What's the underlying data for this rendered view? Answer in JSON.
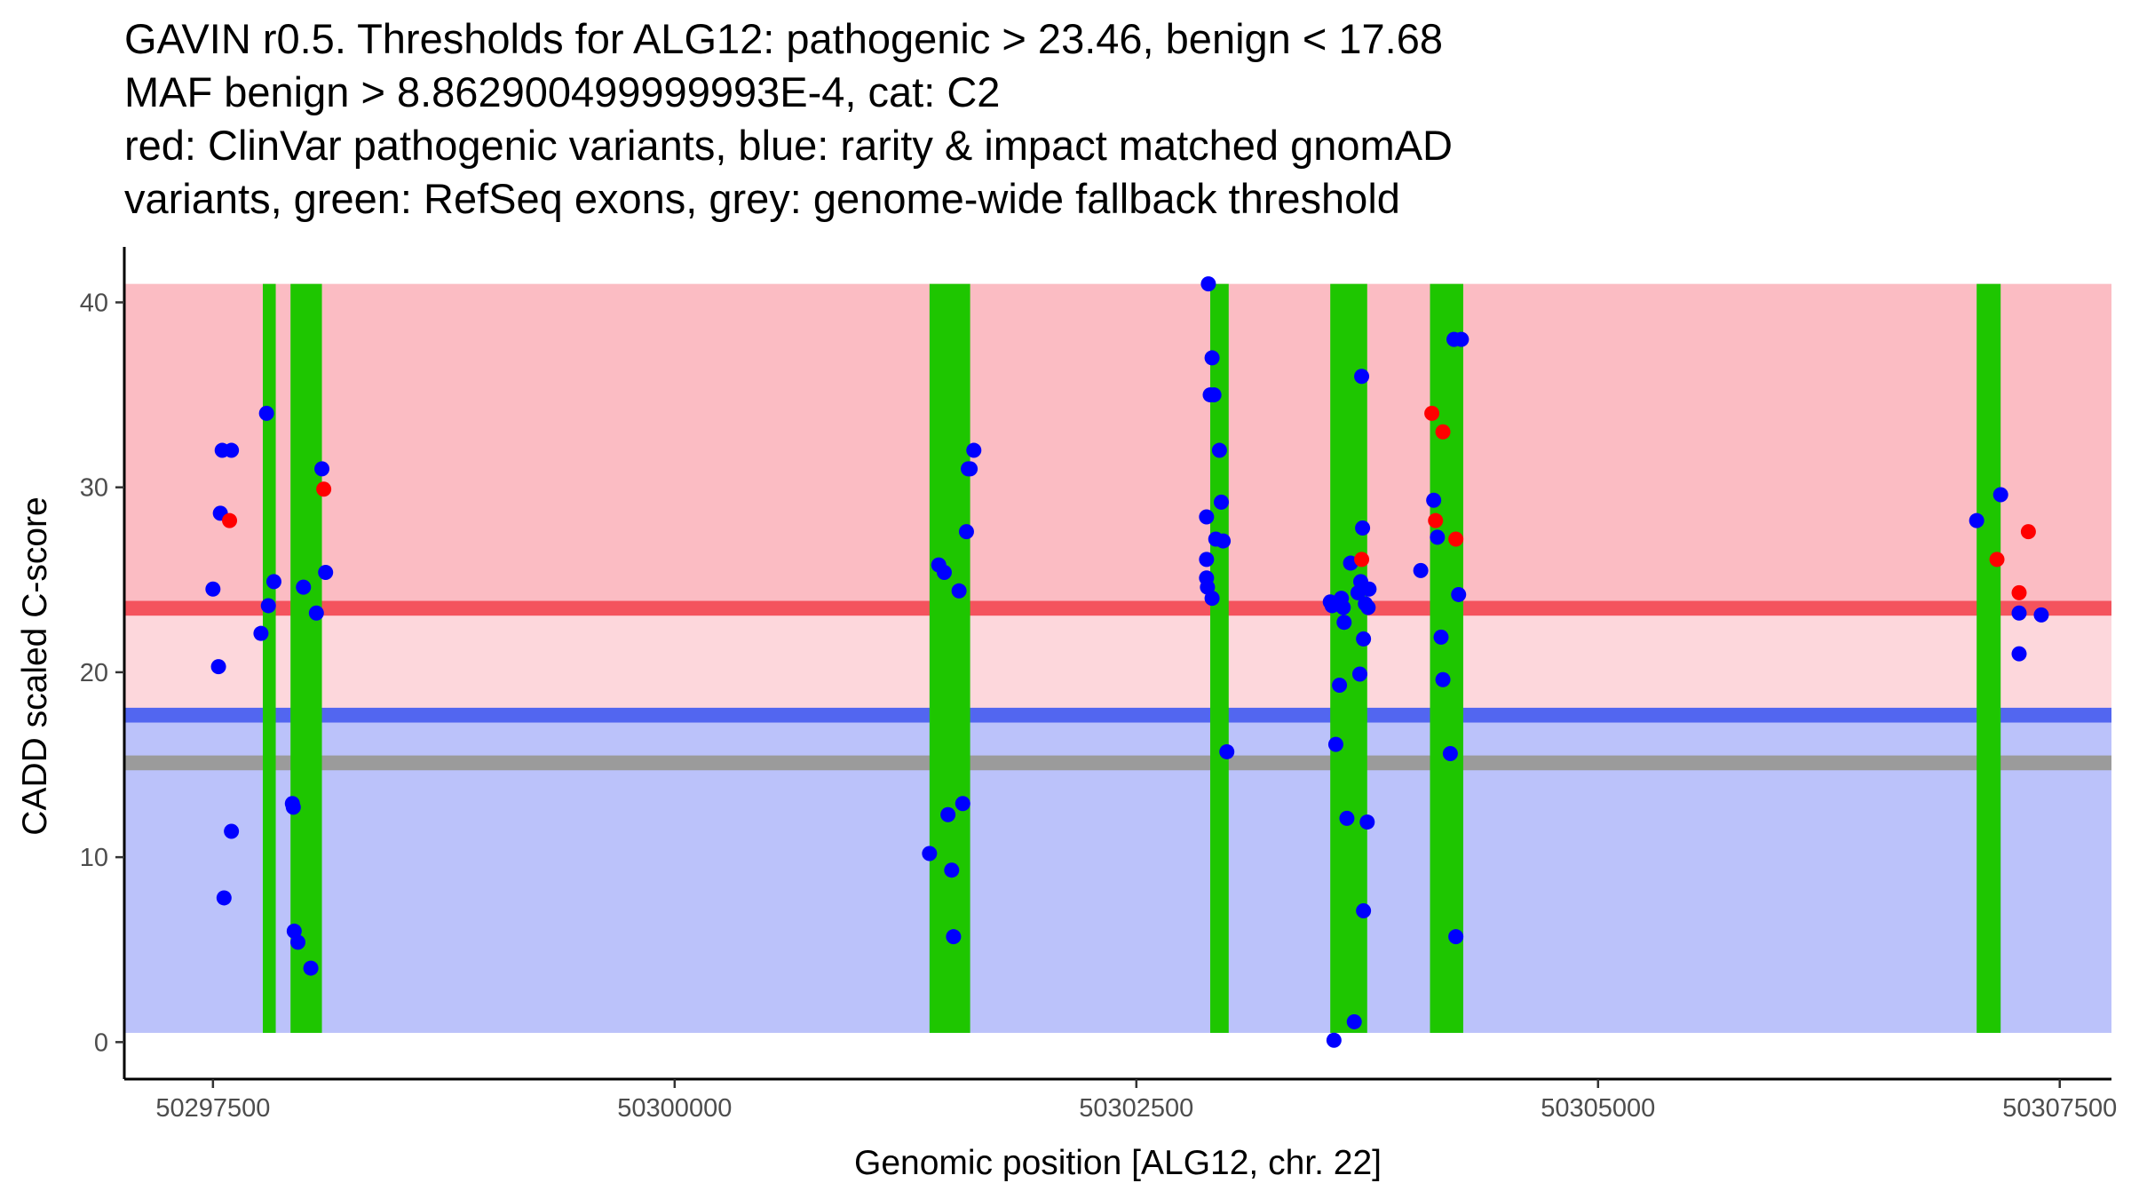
{
  "title_lines": [
    "GAVIN r0.5. Thresholds for ALG12: pathogenic > 23.46, benign < 17.68",
    "MAF benign > 8.862900499999993E-4, cat: C2",
    "red: ClinVar pathogenic variants, blue: rarity & impact matched gnomAD",
    "variants, green: RefSeq exons, grey: genome-wide fallback threshold"
  ],
  "chart_data": {
    "type": "scatter",
    "xlabel": "Genomic position [ALG12, chr. 22]",
    "ylabel": "CADD scaled C-score",
    "xlim": [
      50297020,
      50307780
    ],
    "ylim": [
      -2,
      43
    ],
    "x_ticks": [
      {
        "value": 50297500,
        "label": "50297500"
      },
      {
        "value": 50300000,
        "label": "50300000"
      },
      {
        "value": 50302500,
        "label": "50302500"
      },
      {
        "value": 50305000,
        "label": "50305000"
      },
      {
        "value": 50307500,
        "label": "50307500"
      }
    ],
    "y_ticks": [
      {
        "value": 0,
        "label": "0"
      },
      {
        "value": 10,
        "label": "10"
      },
      {
        "value": 20,
        "label": "20"
      },
      {
        "value": 30,
        "label": "30"
      },
      {
        "value": 40,
        "label": "40"
      }
    ],
    "regions": [
      {
        "name": "pathogenic-region",
        "y0": 23.46,
        "y1": 41,
        "color": "#fbbcc3"
      },
      {
        "name": "grey-zone-region",
        "y0": 17.68,
        "y1": 23.46,
        "color": "#fdd7dc"
      },
      {
        "name": "benign-region",
        "y0": 0.5,
        "y1": 17.68,
        "color": "#bbc2fa"
      }
    ],
    "threshold_lines": [
      {
        "name": "pathogenic-threshold",
        "y": 23.46,
        "color": "#f4535d",
        "width_units": 0.8
      },
      {
        "name": "benign-threshold",
        "y": 17.68,
        "color": "#5266f0",
        "width_units": 0.8
      },
      {
        "name": "fallback-threshold",
        "y": 15.1,
        "color": "#9b9b9b",
        "width_units": 0.8
      }
    ],
    "exons": {
      "color": "#1ec600",
      "y0": 0.5,
      "y1": 41,
      "ranges": [
        [
          50297770,
          50297840
        ],
        [
          50297920,
          50298090
        ],
        [
          50301380,
          50301600
        ],
        [
          50302900,
          50303000
        ],
        [
          50303550,
          50303750
        ],
        [
          50304090,
          50304270
        ],
        [
          50307050,
          50307180
        ]
      ]
    },
    "series": [
      {
        "name": "ClinVar pathogenic",
        "color": "#ff0000",
        "points": [
          {
            "x": 50297590,
            "y": 28.2
          },
          {
            "x": 50298100,
            "y": 29.9
          },
          {
            "x": 50303720,
            "y": 26.1
          },
          {
            "x": 50304100,
            "y": 34.0
          },
          {
            "x": 50304120,
            "y": 28.2
          },
          {
            "x": 50304160,
            "y": 33.0
          },
          {
            "x": 50304230,
            "y": 27.2
          },
          {
            "x": 50307160,
            "y": 26.1
          },
          {
            "x": 50307280,
            "y": 24.3
          },
          {
            "x": 50307330,
            "y": 27.6
          }
        ]
      },
      {
        "name": "gnomAD matched",
        "color": "#0000ff",
        "points": [
          {
            "x": 50297500,
            "y": 24.5
          },
          {
            "x": 50297530,
            "y": 20.3
          },
          {
            "x": 50297540,
            "y": 28.6
          },
          {
            "x": 50297550,
            "y": 32.0
          },
          {
            "x": 50297560,
            "y": 7.8
          },
          {
            "x": 50297600,
            "y": 32.0
          },
          {
            "x": 50297600,
            "y": 11.4
          },
          {
            "x": 50297760,
            "y": 22.1
          },
          {
            "x": 50297790,
            "y": 34.0
          },
          {
            "x": 50297800,
            "y": 23.6
          },
          {
            "x": 50297830,
            "y": 24.9
          },
          {
            "x": 50297930,
            "y": 12.9
          },
          {
            "x": 50297940,
            "y": 6.0
          },
          {
            "x": 50297935,
            "y": 12.7
          },
          {
            "x": 50297960,
            "y": 5.4
          },
          {
            "x": 50297990,
            "y": 24.6
          },
          {
            "x": 50298030,
            "y": 4.0
          },
          {
            "x": 50298060,
            "y": 23.2
          },
          {
            "x": 50298090,
            "y": 31.0
          },
          {
            "x": 50298110,
            "y": 25.4
          },
          {
            "x": 50301380,
            "y": 10.2
          },
          {
            "x": 50301430,
            "y": 25.8
          },
          {
            "x": 50301460,
            "y": 25.4
          },
          {
            "x": 50301480,
            "y": 12.3
          },
          {
            "x": 50301500,
            "y": 9.3
          },
          {
            "x": 50301510,
            "y": 5.7
          },
          {
            "x": 50301540,
            "y": 24.4
          },
          {
            "x": 50301560,
            "y": 12.9
          },
          {
            "x": 50301580,
            "y": 27.6
          },
          {
            "x": 50301590,
            "y": 31.0
          },
          {
            "x": 50301600,
            "y": 31.0
          },
          {
            "x": 50301620,
            "y": 32.0
          },
          {
            "x": 50302890,
            "y": 41.0
          },
          {
            "x": 50302880,
            "y": 28.4
          },
          {
            "x": 50302880,
            "y": 26.1
          },
          {
            "x": 50302880,
            "y": 25.1
          },
          {
            "x": 50302885,
            "y": 24.6
          },
          {
            "x": 50302900,
            "y": 35.0
          },
          {
            "x": 50302910,
            "y": 37.0
          },
          {
            "x": 50302920,
            "y": 35.0
          },
          {
            "x": 50302910,
            "y": 24.0
          },
          {
            "x": 50302930,
            "y": 27.2
          },
          {
            "x": 50302950,
            "y": 32.0
          },
          {
            "x": 50302960,
            "y": 29.2
          },
          {
            "x": 50302970,
            "y": 27.1
          },
          {
            "x": 50302990,
            "y": 15.7
          },
          {
            "x": 50303550,
            "y": 23.8
          },
          {
            "x": 50303560,
            "y": 23.6
          },
          {
            "x": 50303570,
            "y": 0.1
          },
          {
            "x": 50303580,
            "y": 16.1
          },
          {
            "x": 50303600,
            "y": 19.3
          },
          {
            "x": 50303610,
            "y": 24.0
          },
          {
            "x": 50303620,
            "y": 23.5
          },
          {
            "x": 50303625,
            "y": 22.7
          },
          {
            "x": 50303640,
            "y": 12.1
          },
          {
            "x": 50303660,
            "y": 25.9
          },
          {
            "x": 50303680,
            "y": 1.1
          },
          {
            "x": 50303700,
            "y": 24.3
          },
          {
            "x": 50303710,
            "y": 19.9
          },
          {
            "x": 50303715,
            "y": 24.9
          },
          {
            "x": 50303720,
            "y": 36.0
          },
          {
            "x": 50303725,
            "y": 27.8
          },
          {
            "x": 50303730,
            "y": 7.1
          },
          {
            "x": 50303730,
            "y": 21.8
          },
          {
            "x": 50303740,
            "y": 23.7
          },
          {
            "x": 50303750,
            "y": 11.9
          },
          {
            "x": 50303760,
            "y": 24.5
          },
          {
            "x": 50303755,
            "y": 23.5
          },
          {
            "x": 50304040,
            "y": 25.5
          },
          {
            "x": 50304110,
            "y": 29.3
          },
          {
            "x": 50304130,
            "y": 27.3
          },
          {
            "x": 50304150,
            "y": 21.9
          },
          {
            "x": 50304160,
            "y": 19.6
          },
          {
            "x": 50304200,
            "y": 15.6
          },
          {
            "x": 50304220,
            "y": 38.0
          },
          {
            "x": 50304230,
            "y": 5.7
          },
          {
            "x": 50304245,
            "y": 24.2
          },
          {
            "x": 50304260,
            "y": 38.0
          },
          {
            "x": 50307050,
            "y": 28.2
          },
          {
            "x": 50307180,
            "y": 29.6
          },
          {
            "x": 50307280,
            "y": 21.0
          },
          {
            "x": 50307280,
            "y": 23.2
          },
          {
            "x": 50307400,
            "y": 23.1
          }
        ]
      }
    ]
  }
}
